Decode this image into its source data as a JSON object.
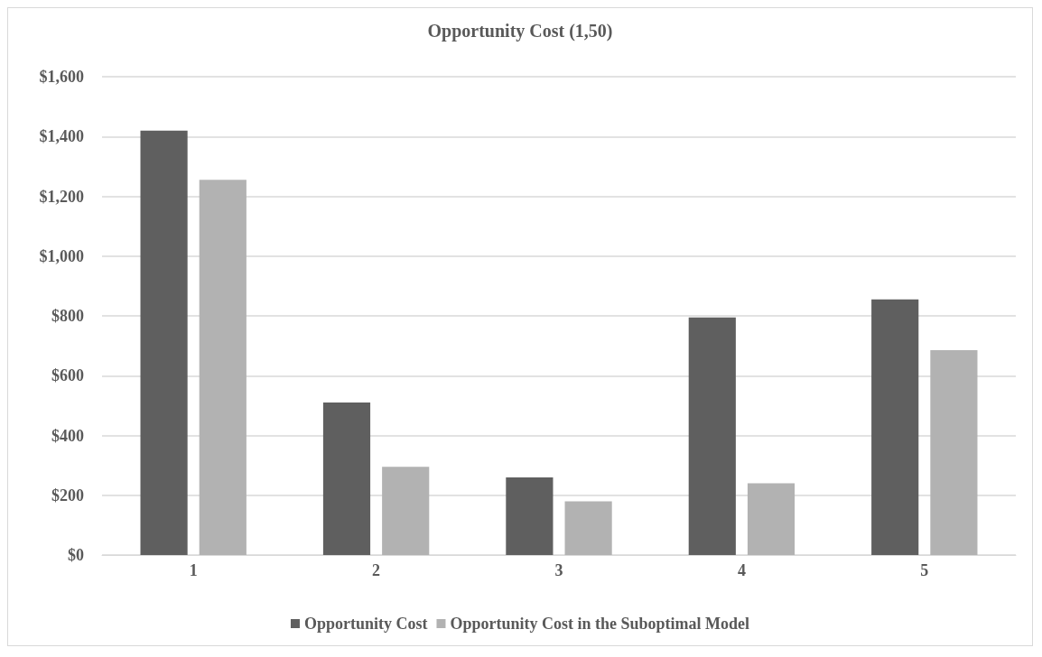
{
  "chart_data": {
    "type": "bar",
    "title": "Opportunity Cost (1,50)",
    "categories": [
      "1",
      "2",
      "3",
      "4",
      "5"
    ],
    "series": [
      {
        "name": "Opportunity Cost",
        "color": "#5f5f5f",
        "values": [
          1420,
          510,
          260,
          795,
          855
        ]
      },
      {
        "name": "Opportunity Cost in the Suboptimal Model",
        "color": "#b2b2b2",
        "values": [
          1255,
          295,
          180,
          240,
          685
        ]
      }
    ],
    "ylim": [
      0,
      1600
    ],
    "yticks": [
      {
        "value": 0,
        "label": "$0"
      },
      {
        "value": 200,
        "label": "$200"
      },
      {
        "value": 400,
        "label": "$400"
      },
      {
        "value": 600,
        "label": "$600"
      },
      {
        "value": 800,
        "label": "$800"
      },
      {
        "value": 1000,
        "label": "$1,000"
      },
      {
        "value": 1200,
        "label": "$1,200"
      },
      {
        "value": 1400,
        "label": "$1,400"
      },
      {
        "value": 1600,
        "label": "$1,600"
      }
    ],
    "grid": true,
    "legend": "bottom"
  }
}
